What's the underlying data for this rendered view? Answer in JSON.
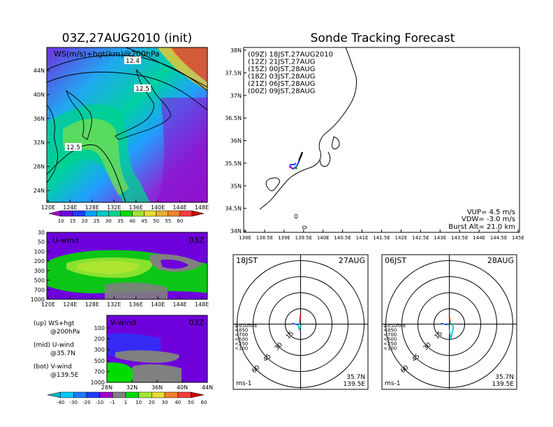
{
  "left_title": "03Z,27AUG2010 (init)",
  "right_title": "Sonde Tracking Forecast",
  "ws_map": {
    "label": "WS(m/s)+hgt(km)@200hPa",
    "contour_labels": [
      "12.4",
      "12.5",
      "12.5"
    ],
    "x_ticks": [
      "120E",
      "124E",
      "128E",
      "132E",
      "136E",
      "140E",
      "144E",
      "148E"
    ],
    "y_ticks": [
      "44N",
      "40N",
      "36N",
      "32N",
      "28N",
      "24N"
    ],
    "colorbar_labels": [
      "10",
      "15",
      "20",
      "25",
      "30",
      "35",
      "40",
      "45",
      "50",
      "55",
      "60"
    ],
    "colorbar_colors": [
      "#a000c8",
      "#6e00dc",
      "#1e3cff",
      "#00a0ff",
      "#00c8c8",
      "#00d28c",
      "#00dc00",
      "#a0e632",
      "#e6dc32",
      "#e6af2d",
      "#f08228",
      "#fa3c3c",
      "#c80000"
    ]
  },
  "u_wind": {
    "label": "U-wind",
    "time": "03Z",
    "y_ticks": [
      "30",
      "50",
      "100",
      "200",
      "300",
      "500",
      "700",
      "1000"
    ],
    "x_ticks": [
      "120E",
      "124E",
      "128E",
      "132E",
      "136E",
      "140E",
      "144E",
      "148E"
    ]
  },
  "v_wind": {
    "label": "V-wind",
    "time": "03Z",
    "y_ticks": [
      "100",
      "200",
      "300",
      "500",
      "700",
      "1000"
    ],
    "x_ticks": [
      "28N",
      "32N",
      "36N",
      "40N",
      "44N"
    ]
  },
  "legend_notes": [
    {
      "a": "(up) WS+hgt",
      "b": "@200hPa"
    },
    {
      "a": "(mid) U-wind",
      "b": "@35.7N"
    },
    {
      "a": "(bot) V-wind",
      "b": "@139.5E"
    }
  ],
  "wind_colorbar": {
    "labels": [
      "-40",
      "-30",
      "-20",
      "-10",
      "-1",
      "1",
      "10",
      "20",
      "30",
      "40",
      "50",
      "60"
    ],
    "colors": [
      "#00b4c8",
      "#00c8ff",
      "#1e78ff",
      "#1e3cff",
      "#a000c8",
      "#808080",
      "#00dc00",
      "#a0e632",
      "#e6dc32",
      "#f08228",
      "#fa3c3c",
      "#c80000"
    ]
  },
  "track_map": {
    "legend": [
      {
        "text": "(09Z) 18JST,27AUG2010",
        "color": "#000000"
      },
      {
        "text": "(12Z) 21JST,27AUG",
        "color": "#c800c8"
      },
      {
        "text": "(15Z) 00JST,28AUG",
        "color": "#1e3cff"
      },
      {
        "text": "(18Z) 03JST,28AUG",
        "color": "#00b400"
      },
      {
        "text": "(21Z) 06JST,28AUG",
        "color": "#e6c800"
      },
      {
        "text": "(00Z) 09JST,28AUG",
        "color": "#f08228"
      }
    ],
    "y_ticks": [
      "38N",
      "37.5N",
      "37N",
      "36.5N",
      "36N",
      "35.5N",
      "35N",
      "34.5N",
      "34N"
    ],
    "x_ticks": [
      "138E",
      "138.5E",
      "139E",
      "139.5E",
      "140E",
      "140.5E",
      "141E",
      "141.5E",
      "142E",
      "142.5E",
      "143E",
      "143.5E",
      "144E",
      "144.5E",
      "145E"
    ],
    "info": [
      "VUP= 4.5 m/s",
      "VDW= -3.0 m/s",
      "Burst Alt= 21.0 km"
    ]
  },
  "hodograph_1": {
    "time": "18JST",
    "date": "27AUG",
    "ring_labels": [
      "15",
      "30",
      "45",
      "60"
    ],
    "unit": "ms-1",
    "lat": "35.7N",
    "lon": "139.5E"
  },
  "hodograph_2": {
    "time": "06JST",
    "date": "28AUG",
    "ring_labels": [
      "15",
      "30",
      "45",
      "60"
    ],
    "unit": "ms-1",
    "lat": "35.7N",
    "lon": "139.5E"
  },
  "hodo_legend": [
    {
      "text": "≥850hPa",
      "color": "#e61e1e"
    },
    {
      "text": "<850",
      "color": "#f08228"
    },
    {
      "text": "<700",
      "color": "#e6c800"
    },
    {
      "text": "<500",
      "color": "#00b400"
    },
    {
      "text": "<250",
      "color": "#00c8c8"
    },
    {
      "text": "<100",
      "color": "#1e3cff"
    }
  ]
}
